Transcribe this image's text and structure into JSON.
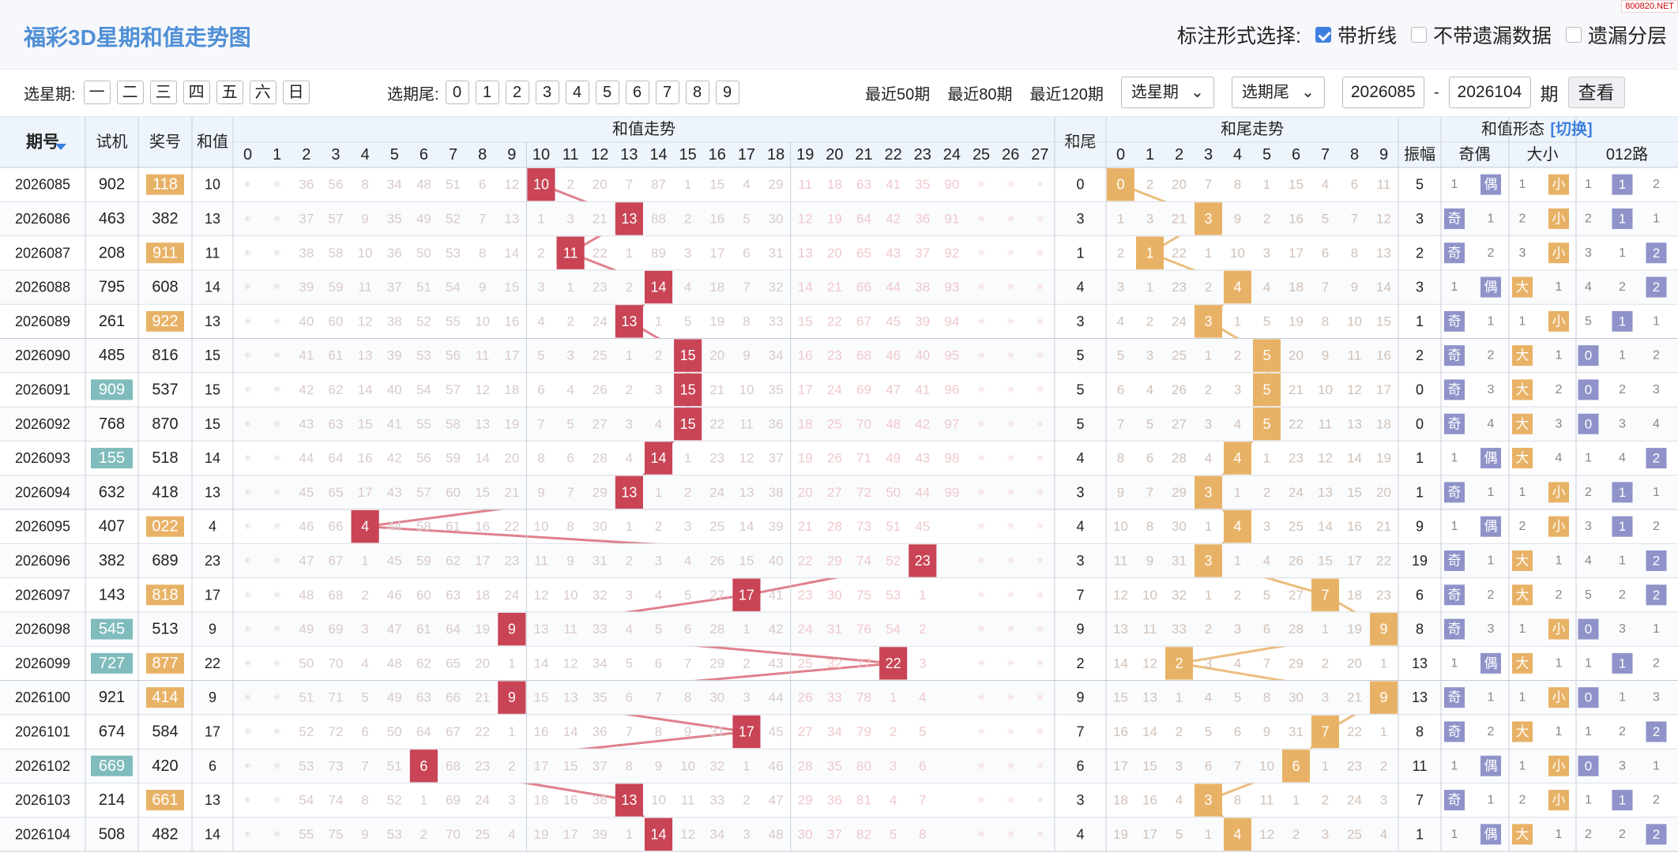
{
  "title": "福彩3D星期和值走势图",
  "watermark": "800820.NET",
  "mark_opts": {
    "label": "标注形式选择:",
    "opt1": "带折线",
    "opt2": "不带遗漏数据",
    "opt3": "遗漏分层"
  },
  "filters": {
    "weekday_label": "选星期:",
    "weekdays": [
      "一",
      "二",
      "三",
      "四",
      "五",
      "六",
      "日"
    ],
    "tail_label": "选期尾:",
    "tails": [
      "0",
      "1",
      "2",
      "3",
      "4",
      "5",
      "6",
      "7",
      "8",
      "9"
    ],
    "recent50": "最近50期",
    "recent80": "最近80期",
    "recent120": "最近120期",
    "select_weekday": "选星期",
    "select_tail": "选期尾",
    "from": "2026085",
    "dash": "-",
    "to": "2026104",
    "period_unit": "期",
    "query": "查看"
  },
  "headers": {
    "period": "期号",
    "trial": "试机",
    "win": "奖号",
    "sum": "和值",
    "sum_trend": "和值走势",
    "tail": "和尾",
    "tail_trend": "和尾走势",
    "form": "和值形态",
    "switch": "[切换]",
    "amp": "振幅",
    "oe": "奇偶",
    "bs": "大小",
    "r012": "012路",
    "sum_cols": [
      "0",
      "1",
      "2",
      "3",
      "4",
      "5",
      "6",
      "7",
      "8",
      "9",
      "10",
      "11",
      "12",
      "13",
      "14",
      "15",
      "16",
      "17",
      "18",
      "19",
      "20",
      "21",
      "22",
      "23",
      "24",
      "25",
      "26",
      "27"
    ],
    "tail_cols": [
      "0",
      "1",
      "2",
      "3",
      "4",
      "5",
      "6",
      "7",
      "8",
      "9"
    ]
  },
  "rows": [
    {
      "p": "2026085",
      "t": "902",
      "w": "118",
      "s": 10,
      "tl": 0,
      "a": 5,
      "th": false,
      "wh": true,
      "oe": [
        1,
        "偶"
      ],
      "bs": [
        1,
        "小"
      ],
      "r": [
        1,
        "1",
        2
      ],
      "so": [
        "㊥",
        "㊥",
        36,
        56,
        8,
        34,
        48,
        51,
        6,
        12,
        10,
        2,
        20,
        7,
        87,
        1,
        15,
        4,
        29,
        11,
        18,
        63,
        41,
        35,
        90,
        "㊥",
        "㊥",
        "㊥"
      ],
      "to": [
        0,
        2,
        20,
        7,
        8,
        1,
        15,
        4,
        6,
        11
      ]
    },
    {
      "p": "2026086",
      "t": "463",
      "w": "382",
      "s": 13,
      "tl": 3,
      "a": 3,
      "th": false,
      "wh": false,
      "oe": [
        "奇",
        1
      ],
      "bs": [
        2,
        "小"
      ],
      "r": [
        2,
        "1",
        1
      ],
      "so": [
        "㊥",
        "㊥",
        37,
        57,
        9,
        35,
        49,
        52,
        7,
        13,
        1,
        3,
        21,
        13,
        88,
        2,
        16,
        5,
        30,
        12,
        19,
        64,
        42,
        36,
        91,
        "㊥",
        "㊥",
        "㊥"
      ],
      "to": [
        1,
        3,
        21,
        3,
        9,
        2,
        16,
        5,
        7,
        12
      ]
    },
    {
      "p": "2026087",
      "t": "208",
      "w": "911",
      "s": 11,
      "tl": 1,
      "a": 2,
      "th": false,
      "wh": true,
      "oe": [
        "奇",
        2
      ],
      "bs": [
        3,
        "小"
      ],
      "r": [
        3,
        1,
        "2"
      ],
      "so": [
        "㊥",
        "㊥",
        38,
        58,
        10,
        36,
        50,
        53,
        8,
        14,
        2,
        11,
        22,
        1,
        89,
        3,
        17,
        6,
        31,
        13,
        20,
        65,
        43,
        37,
        92,
        "㊥",
        "㊥",
        "㊥"
      ],
      "to": [
        2,
        1,
        22,
        1,
        10,
        3,
        17,
        6,
        8,
        13
      ]
    },
    {
      "p": "2026088",
      "t": "795",
      "w": "608",
      "s": 14,
      "tl": 4,
      "a": 3,
      "th": false,
      "wh": false,
      "oe": [
        1,
        "偶"
      ],
      "bs": [
        "大",
        1
      ],
      "r": [
        4,
        2,
        "2"
      ],
      "so": [
        "㊥",
        "㊥",
        39,
        59,
        11,
        37,
        51,
        54,
        9,
        15,
        3,
        1,
        23,
        2,
        14,
        4,
        18,
        7,
        32,
        14,
        21,
        66,
        44,
        38,
        93,
        "㊥",
        "㊥",
        "㊥"
      ],
      "to": [
        3,
        1,
        23,
        2,
        4,
        4,
        18,
        7,
        9,
        14
      ]
    },
    {
      "p": "2026089",
      "t": "261",
      "w": "922",
      "s": 13,
      "tl": 3,
      "a": 1,
      "th": false,
      "wh": true,
      "oe": [
        "奇",
        1
      ],
      "bs": [
        1,
        "小"
      ],
      "r": [
        5,
        "1",
        1
      ],
      "so": [
        "㊥",
        "㊥",
        40,
        60,
        12,
        38,
        52,
        55,
        10,
        16,
        4,
        2,
        24,
        13,
        1,
        5,
        19,
        8,
        33,
        15,
        22,
        67,
        45,
        39,
        94,
        "㊥",
        "㊥",
        "㊥"
      ],
      "to": [
        4,
        2,
        24,
        3,
        1,
        5,
        19,
        8,
        10,
        15
      ]
    },
    {
      "p": "2026090",
      "t": "485",
      "w": "816",
      "s": 15,
      "tl": 5,
      "a": 2,
      "th": false,
      "wh": false,
      "oe": [
        "奇",
        2
      ],
      "bs": [
        "大",
        1
      ],
      "r": [
        "0",
        1,
        2
      ],
      "so": [
        "㊥",
        "㊥",
        41,
        61,
        13,
        39,
        53,
        56,
        11,
        17,
        5,
        3,
        25,
        1,
        2,
        15,
        20,
        9,
        34,
        16,
        23,
        68,
        46,
        40,
        95,
        "㊥",
        "㊥",
        "㊥"
      ],
      "to": [
        5,
        3,
        25,
        1,
        2,
        5,
        20,
        9,
        11,
        16
      ]
    },
    {
      "p": "2026091",
      "t": "909",
      "w": "537",
      "s": 15,
      "tl": 5,
      "a": 0,
      "th": true,
      "wh": false,
      "oe": [
        "奇",
        3
      ],
      "bs": [
        "大",
        2
      ],
      "r": [
        "0",
        2,
        3
      ],
      "so": [
        "㊥",
        "㊥",
        42,
        62,
        14,
        40,
        54,
        57,
        12,
        18,
        6,
        4,
        26,
        2,
        3,
        15,
        21,
        10,
        35,
        17,
        24,
        69,
        47,
        41,
        96,
        "㊥",
        "㊥",
        "㊥"
      ],
      "to": [
        6,
        4,
        26,
        2,
        3,
        5,
        21,
        10,
        12,
        17
      ]
    },
    {
      "p": "2026092",
      "t": "768",
      "w": "870",
      "s": 15,
      "tl": 5,
      "a": 0,
      "th": false,
      "wh": false,
      "oe": [
        "奇",
        4
      ],
      "bs": [
        "大",
        3
      ],
      "r": [
        "0",
        3,
        4
      ],
      "so": [
        "㊥",
        "㊥",
        43,
        63,
        15,
        41,
        55,
        58,
        13,
        19,
        7,
        5,
        27,
        3,
        4,
        15,
        22,
        11,
        36,
        18,
        25,
        70,
        48,
        42,
        97,
        "㊥",
        "㊥",
        "㊥"
      ],
      "to": [
        7,
        5,
        27,
        3,
        4,
        5,
        22,
        11,
        13,
        18
      ]
    },
    {
      "p": "2026093",
      "t": "155",
      "w": "518",
      "s": 14,
      "tl": 4,
      "a": 1,
      "th": true,
      "wh": false,
      "oe": [
        1,
        "偶"
      ],
      "bs": [
        "大",
        4
      ],
      "r": [
        1,
        4,
        "2"
      ],
      "so": [
        "㊥",
        "㊥",
        44,
        64,
        16,
        42,
        56,
        59,
        14,
        20,
        8,
        6,
        28,
        4,
        14,
        1,
        23,
        12,
        37,
        19,
        26,
        71,
        49,
        43,
        98,
        "㊥",
        "㊥",
        "㊥"
      ],
      "to": [
        8,
        6,
        28,
        4,
        4,
        1,
        23,
        12,
        14,
        19
      ]
    },
    {
      "p": "2026094",
      "t": "632",
      "w": "418",
      "s": 13,
      "tl": 3,
      "a": 1,
      "th": false,
      "wh": false,
      "oe": [
        "奇",
        1
      ],
      "bs": [
        1,
        "小"
      ],
      "r": [
        2,
        "1",
        1
      ],
      "so": [
        "㊥",
        "㊥",
        45,
        65,
        17,
        43,
        57,
        60,
        15,
        21,
        9,
        7,
        29,
        13,
        1,
        2,
        24,
        13,
        38,
        20,
        27,
        72,
        50,
        44,
        99,
        "㊥",
        "㊥",
        "㊥"
      ],
      "to": [
        9,
        7,
        29,
        3,
        1,
        2,
        24,
        13,
        15,
        20
      ]
    },
    {
      "p": "2026095",
      "t": "407",
      "w": "022",
      "s": 4,
      "tl": 4,
      "a": 9,
      "th": false,
      "wh": true,
      "oe": [
        1,
        "偶"
      ],
      "bs": [
        2,
        "小"
      ],
      "r": [
        3,
        "1",
        2
      ],
      "so": [
        "㊥",
        "㊥",
        46,
        66,
        4,
        44,
        58,
        61,
        16,
        22,
        10,
        8,
        30,
        1,
        2,
        3,
        25,
        14,
        39,
        21,
        28,
        73,
        51,
        45,
        "",
        "㊥",
        "㊥",
        "㊥"
      ],
      "to": [
        10,
        8,
        30,
        1,
        4,
        3,
        25,
        14,
        16,
        21
      ]
    },
    {
      "p": "2026096",
      "t": "382",
      "w": "689",
      "s": 23,
      "tl": 3,
      "a": 19,
      "th": false,
      "wh": false,
      "oe": [
        "奇",
        1
      ],
      "bs": [
        "大",
        1
      ],
      "r": [
        4,
        1,
        "2"
      ],
      "so": [
        "㊥",
        "㊥",
        47,
        67,
        1,
        45,
        59,
        62,
        17,
        23,
        11,
        9,
        31,
        2,
        3,
        4,
        26,
        15,
        40,
        22,
        29,
        74,
        52,
        23,
        "",
        "㊥",
        "㊥",
        "㊥"
      ],
      "to": [
        11,
        9,
        31,
        3,
        1,
        4,
        26,
        15,
        17,
        22
      ]
    },
    {
      "p": "2026097",
      "t": "143",
      "w": "818",
      "s": 17,
      "tl": 7,
      "a": 6,
      "th": false,
      "wh": true,
      "oe": [
        "奇",
        2
      ],
      "bs": [
        "大",
        2
      ],
      "r": [
        5,
        2,
        "2"
      ],
      "so": [
        "㊥",
        "㊥",
        48,
        68,
        2,
        46,
        60,
        63,
        18,
        24,
        12,
        10,
        32,
        3,
        4,
        5,
        27,
        17,
        41,
        23,
        30,
        75,
        53,
        1,
        "",
        "㊥",
        "㊥",
        "㊥"
      ],
      "to": [
        12,
        10,
        32,
        1,
        2,
        5,
        27,
        7,
        18,
        23
      ]
    },
    {
      "p": "2026098",
      "t": "545",
      "w": "513",
      "s": 9,
      "tl": 9,
      "a": 8,
      "th": true,
      "wh": false,
      "oe": [
        "奇",
        3
      ],
      "bs": [
        1,
        "小"
      ],
      "r": [
        "0",
        3,
        1
      ],
      "so": [
        "㊥",
        "㊥",
        49,
        69,
        3,
        47,
        61,
        64,
        19,
        9,
        13,
        11,
        33,
        4,
        5,
        6,
        28,
        1,
        42,
        24,
        31,
        76,
        54,
        2,
        "",
        "㊥",
        "㊥",
        "㊥"
      ],
      "to": [
        13,
        11,
        33,
        2,
        3,
        6,
        28,
        1,
        19,
        9
      ]
    },
    {
      "p": "2026099",
      "t": "727",
      "w": "877",
      "s": 22,
      "tl": 2,
      "a": 13,
      "th": true,
      "wh": true,
      "oe": [
        1,
        "偶"
      ],
      "bs": [
        "大",
        1
      ],
      "r": [
        1,
        "1",
        2
      ],
      "so": [
        "㊥",
        "㊥",
        50,
        70,
        4,
        48,
        62,
        65,
        20,
        1,
        14,
        12,
        34,
        5,
        6,
        7,
        29,
        2,
        43,
        25,
        32,
        77,
        22,
        3,
        "",
        "㊥",
        "㊥",
        "㊥"
      ],
      "to": [
        14,
        12,
        2,
        3,
        4,
        7,
        29,
        2,
        20,
        1
      ]
    },
    {
      "p": "2026100",
      "t": "921",
      "w": "414",
      "s": 9,
      "tl": 9,
      "a": 13,
      "th": false,
      "wh": true,
      "oe": [
        "奇",
        1
      ],
      "bs": [
        1,
        "小"
      ],
      "r": [
        "0",
        1,
        3
      ],
      "so": [
        "㊥",
        "㊥",
        51,
        71,
        5,
        49,
        63,
        66,
        21,
        9,
        15,
        13,
        35,
        6,
        7,
        8,
        30,
        3,
        44,
        26,
        33,
        78,
        1,
        4,
        "",
        "㊥",
        "㊥",
        "㊥"
      ],
      "to": [
        15,
        13,
        1,
        4,
        5,
        8,
        30,
        3,
        21,
        9
      ]
    },
    {
      "p": "2026101",
      "t": "674",
      "w": "584",
      "s": 17,
      "tl": 7,
      "a": 8,
      "th": false,
      "wh": false,
      "oe": [
        "奇",
        2
      ],
      "bs": [
        "大",
        1
      ],
      "r": [
        1,
        2,
        "2"
      ],
      "so": [
        "㊥",
        "㊥",
        52,
        72,
        6,
        50,
        64,
        67,
        22,
        1,
        16,
        14,
        36,
        7,
        8,
        9,
        31,
        17,
        45,
        27,
        34,
        79,
        2,
        5,
        "",
        "㊥",
        "㊥",
        "㊥"
      ],
      "to": [
        16,
        14,
        2,
        5,
        6,
        9,
        31,
        7,
        22,
        1
      ]
    },
    {
      "p": "2026102",
      "t": "669",
      "w": "420",
      "s": 6,
      "tl": 6,
      "a": 11,
      "th": true,
      "wh": false,
      "oe": [
        1,
        "偶"
      ],
      "bs": [
        1,
        "小"
      ],
      "r": [
        "0",
        3,
        1
      ],
      "so": [
        "㊥",
        "㊥",
        53,
        73,
        7,
        51,
        6,
        68,
        23,
        2,
        17,
        15,
        37,
        8,
        9,
        10,
        32,
        1,
        46,
        28,
        35,
        80,
        3,
        6,
        "",
        "㊥",
        "㊥",
        "㊥"
      ],
      "to": [
        17,
        15,
        3,
        6,
        7,
        10,
        6,
        1,
        23,
        2
      ]
    },
    {
      "p": "2026103",
      "t": "214",
      "w": "661",
      "s": 13,
      "tl": 3,
      "a": 7,
      "th": false,
      "wh": true,
      "oe": [
        "奇",
        1
      ],
      "bs": [
        2,
        "小"
      ],
      "r": [
        1,
        "1",
        2
      ],
      "so": [
        "㊥",
        "㊥",
        54,
        74,
        8,
        52,
        1,
        69,
        24,
        3,
        18,
        16,
        38,
        13,
        10,
        11,
        33,
        2,
        47,
        29,
        36,
        81,
        4,
        7,
        "",
        "㊥",
        "㊥",
        "㊥"
      ],
      "to": [
        18,
        16,
        4,
        3,
        8,
        11,
        1,
        2,
        24,
        3
      ]
    },
    {
      "p": "2026104",
      "t": "508",
      "w": "482",
      "s": 14,
      "tl": 4,
      "a": 1,
      "th": false,
      "wh": false,
      "oe": [
        1,
        "偶"
      ],
      "bs": [
        "大",
        1
      ],
      "r": [
        2,
        2,
        "2"
      ],
      "so": [
        "㊥",
        "㊥",
        55,
        75,
        9,
        53,
        2,
        70,
        25,
        4,
        19,
        17,
        39,
        1,
        14,
        12,
        34,
        3,
        48,
        30,
        37,
        82,
        5,
        8,
        "",
        "㊥",
        "㊥",
        "㊥"
      ],
      "to": [
        19,
        17,
        5,
        1,
        4,
        12,
        2,
        3,
        25,
        4
      ]
    }
  ],
  "colors": {
    "red": "#c94455",
    "orange": "#e8b266",
    "teal": "#7fbcbb",
    "purple": "#8f93c9",
    "header": "#eef4fb",
    "line_red": "#d96b78",
    "line_orange": "#e8b266"
  }
}
